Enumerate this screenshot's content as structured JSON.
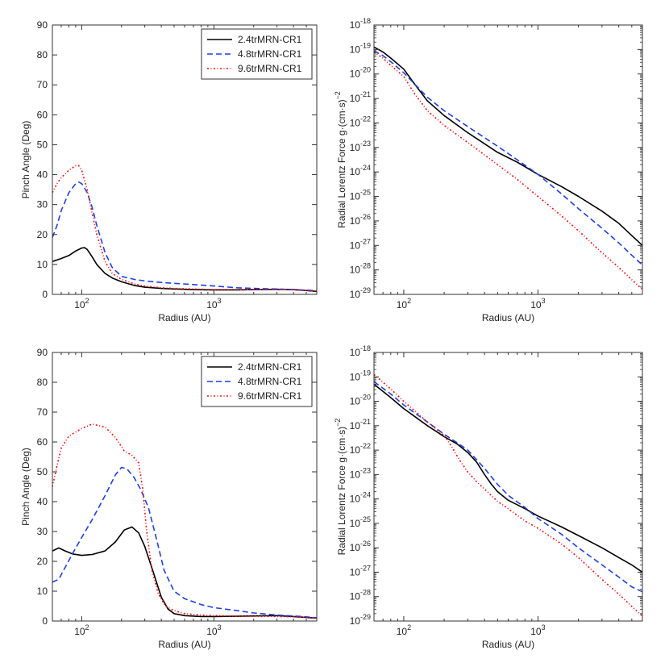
{
  "colors": {
    "black": "#000000",
    "blue": "#1f3fe0",
    "red": "#ee1111"
  },
  "chart_data": [
    {
      "type": "line",
      "id": "top-left",
      "xscale": "log",
      "yscale": "linear",
      "xlim": [
        60,
        6000
      ],
      "ylim": [
        0,
        90
      ],
      "yticks": [
        0,
        10,
        20,
        30,
        40,
        50,
        60,
        70,
        80,
        90
      ],
      "ytick_labels": [
        "0",
        "10",
        "20",
        "30",
        "40",
        "50",
        "60",
        "70",
        "80",
        "90"
      ],
      "xticks": [
        100,
        1000
      ],
      "xtick_labels": [
        {
          "base": "10",
          "exp": "2"
        },
        {
          "base": "10",
          "exp": "3"
        }
      ],
      "xlabel": "Radius (AU)",
      "ylabel": "Pinch Angle (Deg)",
      "legend": "top-right",
      "series": [
        {
          "name": "2.4trMRN-CR1",
          "color": "#000000",
          "style": "solid",
          "x": [
            60,
            70,
            80,
            90,
            100,
            105,
            110,
            120,
            130,
            150,
            170,
            200,
            250,
            300,
            400,
            500,
            700,
            1000,
            1500,
            2000,
            3000,
            4000,
            5000,
            6000
          ],
          "y": [
            11,
            12,
            13,
            14.5,
            15.5,
            15.6,
            15,
            12.5,
            10,
            7,
            5.5,
            4.2,
            3,
            2.4,
            2,
            1.8,
            1.6,
            1.5,
            1.5,
            1.6,
            1.7,
            1.6,
            1.3,
            1.0
          ]
        },
        {
          "name": "4.8trMRN-CR1",
          "color": "#1f3fe0",
          "style": "dashed",
          "x": [
            60,
            65,
            70,
            80,
            90,
            95,
            100,
            110,
            120,
            130,
            150,
            170,
            200,
            250,
            300,
            400,
            500,
            700,
            1000,
            1500,
            2000,
            3000,
            4000,
            5000,
            6000
          ],
          "y": [
            19,
            23,
            28,
            34,
            37,
            37.5,
            37,
            34,
            29,
            23,
            14,
            9,
            6,
            5,
            4.5,
            4,
            3.7,
            3.3,
            2.8,
            2.2,
            2,
            1.8,
            1.6,
            1.4,
            1.2
          ]
        },
        {
          "name": "9.6trMRN-CR1",
          "color": "#ee1111",
          "style": "dotted",
          "x": [
            60,
            65,
            70,
            80,
            90,
            95,
            100,
            110,
            120,
            130,
            150,
            170,
            200,
            250,
            300,
            400,
            500,
            700,
            1000,
            1500,
            2000,
            3000,
            4000,
            5000,
            6000
          ],
          "y": [
            34,
            37,
            39,
            41.5,
            43,
            43,
            41.5,
            35,
            27,
            20,
            11,
            7,
            5,
            3.5,
            2.8,
            2.2,
            2,
            1.8,
            1.6,
            1.6,
            1.6,
            1.6,
            1.5,
            1.3,
            1.0
          ]
        }
      ]
    },
    {
      "type": "line",
      "id": "top-right",
      "xscale": "log",
      "yscale": "log",
      "xlim": [
        60,
        6000
      ],
      "ylim_exp": [
        -29,
        -18
      ],
      "yticks_exp": [
        -29,
        -28,
        -27,
        -26,
        -25,
        -24,
        -23,
        -22,
        -21,
        -20,
        -19,
        -18
      ],
      "ytick_labels": [
        {
          "base": "10",
          "exp": "-29"
        },
        {
          "base": "10",
          "exp": "-28"
        },
        {
          "base": "10",
          "exp": "-27"
        },
        {
          "base": "10",
          "exp": "-26"
        },
        {
          "base": "10",
          "exp": "-25"
        },
        {
          "base": "10",
          "exp": "-24"
        },
        {
          "base": "10",
          "exp": "-23"
        },
        {
          "base": "10",
          "exp": "-22"
        },
        {
          "base": "10",
          "exp": "-21"
        },
        {
          "base": "10",
          "exp": "-20"
        },
        {
          "base": "10",
          "exp": "-19"
        },
        {
          "base": "10",
          "exp": "-18"
        }
      ],
      "xticks": [
        100,
        1000
      ],
      "xtick_labels": [
        {
          "base": "10",
          "exp": "2"
        },
        {
          "base": "10",
          "exp": "3"
        }
      ],
      "xlabel": "Radius (AU)",
      "ylabel_main": "Radial Lorentz Force g·(cm·s)",
      "ylabel_exp": "−2",
      "series": [
        {
          "name": "2.4trMRN-CR1",
          "color": "#000000",
          "style": "solid",
          "x": [
            60,
            70,
            80,
            100,
            120,
            150,
            200,
            300,
            500,
            700,
            1000,
            1500,
            2000,
            3000,
            4000,
            5000,
            6000
          ],
          "yexp": [
            -18.9,
            -19.1,
            -19.35,
            -19.8,
            -20.4,
            -21.1,
            -21.7,
            -22.4,
            -23.2,
            -23.6,
            -24.1,
            -24.6,
            -25.0,
            -25.6,
            -26.1,
            -26.6,
            -27.0
          ]
        },
        {
          "name": "4.8trMRN-CR1",
          "color": "#1f3fe0",
          "style": "dashed",
          "x": [
            60,
            70,
            80,
            100,
            120,
            150,
            200,
            300,
            500,
            700,
            1000,
            1500,
            2000,
            3000,
            4000,
            5000,
            6000
          ],
          "yexp": [
            -19.05,
            -19.25,
            -19.5,
            -19.95,
            -20.4,
            -20.95,
            -21.5,
            -22.15,
            -22.95,
            -23.5,
            -24.1,
            -24.9,
            -25.5,
            -26.3,
            -26.9,
            -27.4,
            -27.8
          ]
        },
        {
          "name": "9.6trMRN-CR1",
          "color": "#ee1111",
          "style": "dotted",
          "x": [
            60,
            70,
            80,
            100,
            120,
            150,
            200,
            300,
            500,
            700,
            1000,
            1500,
            2000,
            3000,
            4000,
            5000,
            6000
          ],
          "yexp": [
            -19.1,
            -19.35,
            -19.65,
            -20.1,
            -20.8,
            -21.5,
            -22.1,
            -22.8,
            -23.7,
            -24.3,
            -25.0,
            -25.8,
            -26.4,
            -27.3,
            -27.9,
            -28.4,
            -28.8
          ]
        }
      ]
    },
    {
      "type": "line",
      "id": "bottom-left",
      "xscale": "log",
      "yscale": "linear",
      "xlim": [
        60,
        6000
      ],
      "ylim": [
        0,
        90
      ],
      "yticks": [
        0,
        10,
        20,
        30,
        40,
        50,
        60,
        70,
        80,
        90
      ],
      "ytick_labels": [
        "0",
        "10",
        "20",
        "30",
        "40",
        "50",
        "60",
        "70",
        "80",
        "90"
      ],
      "xticks": [
        100,
        1000
      ],
      "xtick_labels": [
        {
          "base": "10",
          "exp": "2"
        },
        {
          "base": "10",
          "exp": "3"
        }
      ],
      "xlabel": "Radius (AU)",
      "ylabel": "Pinch Angle (Deg)",
      "legend": "top-right",
      "series": [
        {
          "name": "2.4trMRN-CR1",
          "color": "#000000",
          "style": "solid",
          "x": [
            60,
            67,
            75,
            85,
            100,
            120,
            150,
            180,
            210,
            240,
            270,
            300,
            350,
            400,
            450,
            500,
            600,
            800,
            1000,
            1500,
            2000,
            3000,
            4000,
            5000,
            6000
          ],
          "y": [
            23.5,
            24.5,
            23.5,
            22.5,
            22,
            22.3,
            23.5,
            26.5,
            30.5,
            31.5,
            29.5,
            25,
            16,
            8,
            4,
            2.5,
            1.8,
            1.5,
            1.5,
            1.6,
            1.7,
            1.8,
            1.5,
            1.2,
            1.0
          ]
        },
        {
          "name": "4.8trMRN-CR1",
          "color": "#1f3fe0",
          "style": "dashed",
          "x": [
            60,
            67,
            75,
            85,
            100,
            120,
            150,
            180,
            200,
            220,
            250,
            280,
            320,
            370,
            420,
            500,
            600,
            800,
            1000,
            1500,
            2000,
            3000,
            4000,
            5000,
            6000
          ],
          "y": [
            13,
            14,
            18,
            22.5,
            28,
            34,
            42,
            49,
            51.5,
            51,
            48,
            44,
            38,
            27,
            17,
            10,
            7.5,
            5.5,
            4.5,
            3.5,
            2.7,
            2,
            1.7,
            1.4,
            1.1
          ]
        },
        {
          "name": "9.6trMRN-CR1",
          "color": "#ee1111",
          "style": "dotted",
          "x": [
            60,
            65,
            70,
            80,
            100,
            120,
            150,
            180,
            210,
            240,
            270,
            290,
            310,
            340,
            380,
            430,
            500,
            600,
            800,
            1000,
            1500,
            2000,
            3000,
            4000,
            5000,
            6000
          ],
          "y": [
            45,
            52,
            58,
            62,
            64.5,
            66,
            65,
            61.5,
            57,
            55.5,
            53,
            44,
            30,
            17,
            9,
            5,
            3.5,
            2.5,
            2,
            1.8,
            1.6,
            1.6,
            1.5,
            1.4,
            1.2,
            1.0
          ]
        }
      ]
    },
    {
      "type": "line",
      "id": "bottom-right",
      "xscale": "log",
      "yscale": "log",
      "xlim": [
        60,
        6000
      ],
      "ylim_exp": [
        -29,
        -18
      ],
      "yticks_exp": [
        -29,
        -28,
        -27,
        -26,
        -25,
        -24,
        -23,
        -22,
        -21,
        -20,
        -19,
        -18
      ],
      "ytick_labels": [
        {
          "base": "10",
          "exp": "-29"
        },
        {
          "base": "10",
          "exp": "-28"
        },
        {
          "base": "10",
          "exp": "-27"
        },
        {
          "base": "10",
          "exp": "-26"
        },
        {
          "base": "10",
          "exp": "-25"
        },
        {
          "base": "10",
          "exp": "-24"
        },
        {
          "base": "10",
          "exp": "-23"
        },
        {
          "base": "10",
          "exp": "-22"
        },
        {
          "base": "10",
          "exp": "-21"
        },
        {
          "base": "10",
          "exp": "-20"
        },
        {
          "base": "10",
          "exp": "-19"
        },
        {
          "base": "10",
          "exp": "-18"
        }
      ],
      "xticks": [
        100,
        1000
      ],
      "xtick_labels": [
        {
          "base": "10",
          "exp": "2"
        },
        {
          "base": "10",
          "exp": "3"
        }
      ],
      "xlabel": "Radius (AU)",
      "ylabel_main": "Radial Lorentz Force g·(cm·s)",
      "ylabel_exp": "−2",
      "series": [
        {
          "name": "2.4trMRN-CR1",
          "color": "#000000",
          "style": "solid",
          "x": [
            60,
            80,
            100,
            150,
            200,
            250,
            300,
            350,
            400,
            450,
            500,
            600,
            800,
            1000,
            1500,
            2000,
            3000,
            4000,
            5000,
            6000
          ],
          "yexp": [
            -19.3,
            -19.85,
            -20.3,
            -21.0,
            -21.45,
            -21.75,
            -22.1,
            -22.5,
            -23.0,
            -23.4,
            -23.7,
            -24.05,
            -24.4,
            -24.7,
            -25.15,
            -25.5,
            -26.0,
            -26.4,
            -26.7,
            -27.0
          ]
        },
        {
          "name": "4.8trMRN-CR1",
          "color": "#1f3fe0",
          "style": "dashed",
          "x": [
            60,
            80,
            100,
            150,
            200,
            250,
            300,
            350,
            400,
            450,
            500,
            600,
            800,
            1000,
            1500,
            2000,
            3000,
            4000,
            5000,
            6000
          ],
          "yexp": [
            -19.2,
            -19.7,
            -20.15,
            -20.85,
            -21.35,
            -21.7,
            -22.0,
            -22.4,
            -22.75,
            -23.1,
            -23.4,
            -23.85,
            -24.35,
            -24.8,
            -25.45,
            -26.0,
            -26.7,
            -27.2,
            -27.6,
            -27.8
          ]
        },
        {
          "name": "9.6trMRN-CR1",
          "color": "#ee1111",
          "style": "dotted",
          "x": [
            60,
            80,
            100,
            150,
            200,
            230,
            260,
            300,
            350,
            400,
            500,
            600,
            800,
            1000,
            1500,
            2000,
            3000,
            4000,
            5000,
            6000
          ],
          "yexp": [
            -18.9,
            -19.5,
            -20.0,
            -20.85,
            -21.4,
            -21.9,
            -22.4,
            -22.9,
            -23.3,
            -23.6,
            -24.1,
            -24.4,
            -24.9,
            -25.2,
            -25.85,
            -26.4,
            -27.3,
            -27.9,
            -28.4,
            -28.8
          ]
        }
      ]
    }
  ]
}
